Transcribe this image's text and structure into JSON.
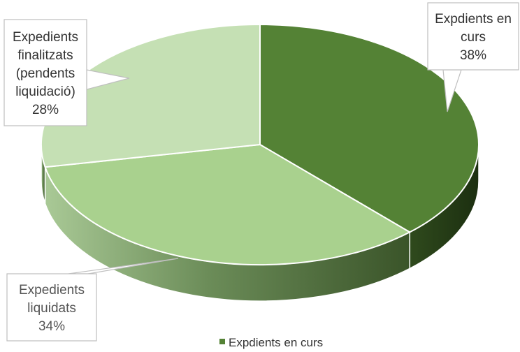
{
  "chart_data": {
    "type": "pie",
    "style": "3d",
    "title": "",
    "slices": [
      {
        "label": "Expdients en curs",
        "value": 38,
        "value_label": "38%",
        "color": "#548235",
        "side_color": "#2e4a1d"
      },
      {
        "label": "Expedients liquidats",
        "value": 34,
        "value_label": "34%",
        "color": "#a9d18e",
        "side_color": "#6e8f5c"
      },
      {
        "label": "Expedients finalitzats (pendents liquidació)",
        "value": 28,
        "value_label": "28%",
        "color": "#c5e0b4",
        "side_color": "#8fa882"
      }
    ],
    "callouts": [
      {
        "lines": [
          "Expdients en",
          "curs",
          "38%"
        ]
      },
      {
        "lines": [
          "Expedients",
          "liquidats",
          "34%"
        ]
      },
      {
        "lines": [
          "Expedients",
          "finalitzats",
          "(pendents",
          "liquidació)",
          "28%"
        ]
      }
    ],
    "legend": {
      "position": "bottom",
      "visible_entries": [
        {
          "label": "Expdients en curs",
          "color": "#548235"
        }
      ]
    }
  }
}
